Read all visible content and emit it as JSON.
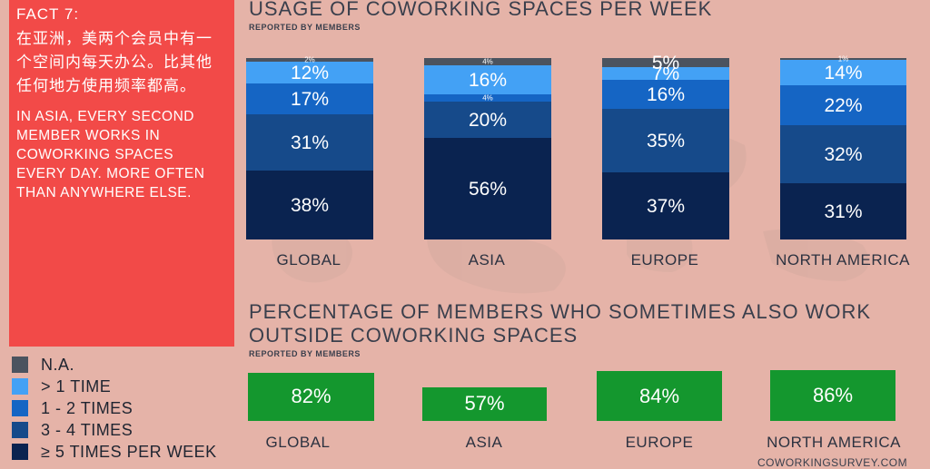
{
  "fact": {
    "title": "FACT 7:",
    "cn_text": "在亚洲，美两个会员中有一个空间内每天办公。比其他任何地方使用频率都高。",
    "en_text": "IN ASIA, EVERY SECOND MEMBER WORKS IN COWORKING SPACES EVERY DAY. MORE OFTEN THAN ANYWHERE ELSE."
  },
  "legend": [
    {
      "label": "N.A.",
      "color": "#4b535f"
    },
    {
      "label": "> 1 TIME",
      "color": "#43a1f5"
    },
    {
      "label": "1 - 2 TIMES",
      "color": "#1565c4"
    },
    {
      "label": "3 - 4 TIMES",
      "color": "#164a8a"
    },
    {
      "label": "≥ 5 TIMES PER WEEK",
      "color": "#0a2350"
    }
  ],
  "usage": {
    "title": "USAGE OF COWORKING SPACES PER WEEK",
    "subtitle": "REPORTED BY MEMBERS"
  },
  "outside": {
    "title_line1": "PERCENTAGE OF MEMBERS WHO SOMETIMES ALSO WORK",
    "title_line2": "OUTSIDE COWORKING SPACES",
    "subtitle": "REPORTED BY MEMBERS"
  },
  "credit": "COWORKINGSURVEY.COM",
  "chart_data": [
    {
      "type": "bar",
      "stacked": true,
      "title": "USAGE OF COWORKING SPACES PER WEEK",
      "subtitle": "REPORTED BY MEMBERS",
      "categories": [
        "GLOBAL",
        "ASIA",
        "EUROPE",
        "NORTH AMERICA"
      ],
      "series": [
        {
          "name": "≥ 5 TIMES PER WEEK",
          "values": [
            38,
            56,
            37,
            31
          ]
        },
        {
          "name": "3 - 4 TIMES",
          "values": [
            31,
            20,
            35,
            32
          ]
        },
        {
          "name": "1 - 2 TIMES",
          "values": [
            17,
            4,
            16,
            22
          ]
        },
        {
          "name": "> 1 TIME",
          "values": [
            12,
            16,
            7,
            14
          ]
        },
        {
          "name": "N.A.",
          "values": [
            2,
            4,
            5,
            1
          ]
        }
      ],
      "ylim": [
        0,
        100
      ],
      "legend": "bottom-left"
    },
    {
      "type": "bar",
      "title": "PERCENTAGE OF MEMBERS WHO SOMETIMES ALSO WORK OUTSIDE COWORKING SPACES",
      "subtitle": "REPORTED BY MEMBERS",
      "categories": [
        "GLOBAL",
        "ASIA",
        "EUROPE",
        "NORTH AMERICA"
      ],
      "values": [
        82,
        57,
        84,
        86
      ],
      "color": "#14972e"
    }
  ]
}
